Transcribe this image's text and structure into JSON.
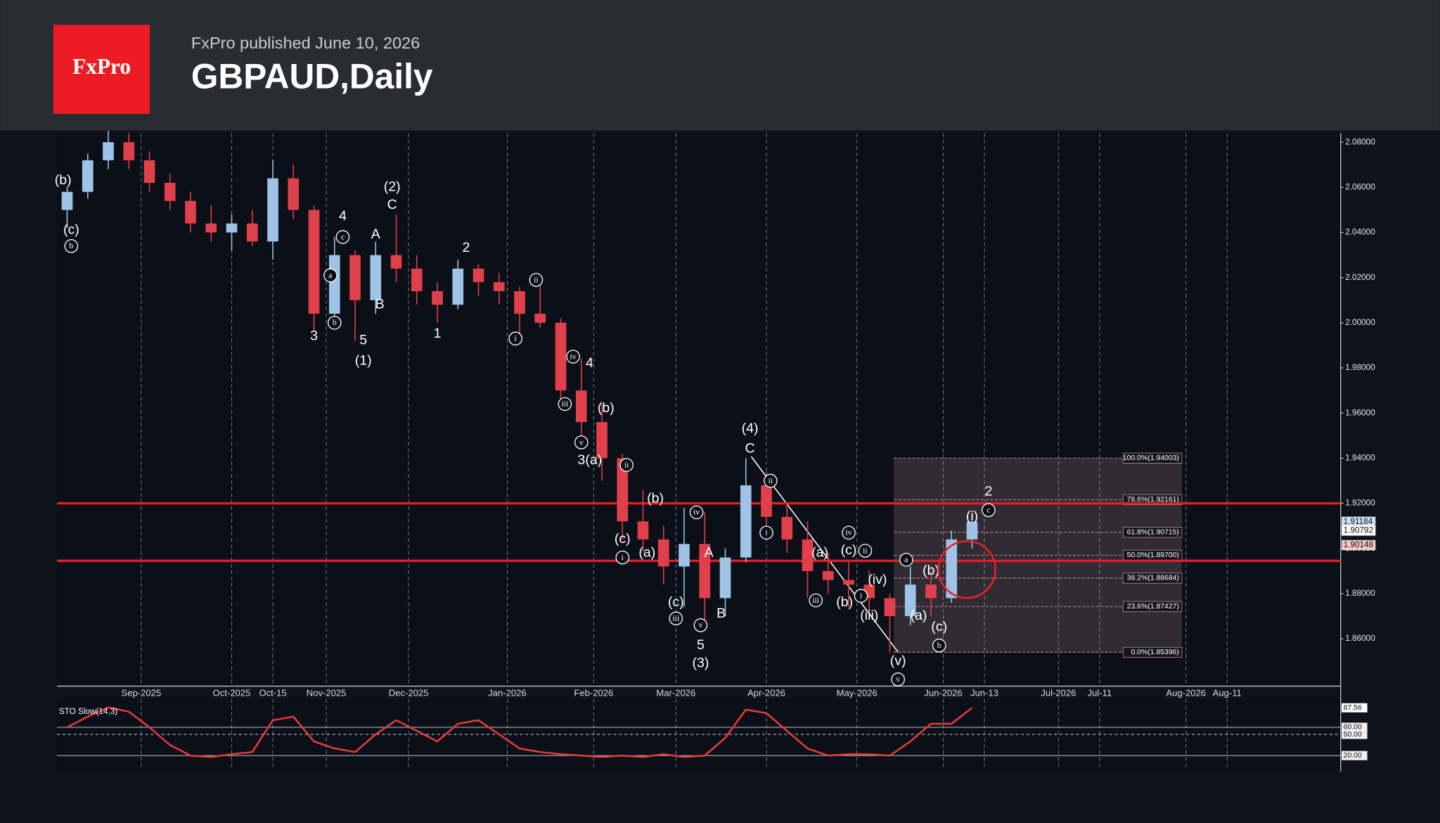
{
  "header": {
    "logo": "FxPro",
    "published": "FxPro published June 10, 2026",
    "title": "GBPAUD,Daily"
  },
  "chart_data": {
    "type": "candlestick",
    "x": [
      "2025-08-04",
      "2025-08-11",
      "2025-08-18",
      "2025-08-25",
      "2025-09-01",
      "2025-09-08",
      "2025-09-15",
      "2025-09-22",
      "2025-09-29",
      "2025-10-06",
      "2025-10-13",
      "2025-10-20",
      "2025-10-27",
      "2025-11-03",
      "2025-11-10",
      "2025-11-17",
      "2025-11-24",
      "2025-12-01",
      "2025-12-08",
      "2025-12-15",
      "2025-12-22",
      "2025-12-29",
      "2026-01-05",
      "2026-01-12",
      "2026-01-19",
      "2026-01-26",
      "2026-02-02",
      "2026-02-09",
      "2026-02-16",
      "2026-02-23",
      "2026-03-02",
      "2026-03-09",
      "2026-03-16",
      "2026-03-23",
      "2026-03-30",
      "2026-04-06",
      "2026-04-13",
      "2026-04-20",
      "2026-04-27",
      "2026-05-04",
      "2026-05-11",
      "2026-05-18",
      "2026-05-25",
      "2026-06-01",
      "2026-06-08"
    ],
    "open": [
      2.05,
      2.058,
      2.072,
      2.08,
      2.072,
      2.062,
      2.054,
      2.044,
      2.04,
      2.044,
      2.036,
      2.064,
      2.05,
      2.004,
      2.03,
      2.01,
      2.03,
      2.024,
      2.014,
      2.008,
      2.024,
      2.018,
      2.014,
      2.004,
      2.0,
      1.97,
      1.956,
      1.94,
      1.912,
      1.904,
      1.892,
      1.902,
      1.878,
      1.896,
      1.928,
      1.914,
      1.904,
      1.89,
      1.886,
      1.884,
      1.878,
      1.87,
      1.884,
      1.878,
      1.904
    ],
    "high": [
      2.06,
      2.075,
      2.085,
      2.084,
      2.076,
      2.066,
      2.058,
      2.052,
      2.048,
      2.05,
      2.072,
      2.07,
      2.052,
      2.038,
      2.032,
      2.036,
      2.048,
      2.03,
      2.018,
      2.028,
      2.026,
      2.022,
      2.016,
      2.018,
      2.002,
      1.984,
      1.964,
      1.942,
      1.926,
      1.91,
      1.918,
      1.916,
      1.9,
      1.94,
      1.934,
      1.92,
      1.912,
      1.898,
      1.894,
      1.89,
      1.88,
      1.892,
      1.89,
      1.908,
      1.912
    ],
    "low": [
      2.042,
      2.055,
      2.068,
      2.068,
      2.058,
      2.05,
      2.04,
      2.036,
      2.032,
      2.034,
      2.028,
      2.046,
      1.996,
      1.998,
      1.992,
      2.004,
      2.018,
      2.008,
      2.0,
      2.006,
      2.012,
      2.008,
      1.995,
      1.998,
      1.962,
      1.946,
      1.93,
      1.904,
      1.898,
      1.884,
      1.874,
      1.866,
      1.87,
      1.894,
      1.906,
      1.898,
      1.878,
      1.88,
      1.874,
      1.872,
      1.854,
      1.866,
      1.87,
      1.876,
      1.9
    ],
    "close": [
      2.058,
      2.072,
      2.08,
      2.072,
      2.062,
      2.054,
      2.044,
      2.04,
      2.044,
      2.036,
      2.064,
      2.05,
      2.004,
      2.03,
      2.01,
      2.03,
      2.024,
      2.014,
      2.008,
      2.024,
      2.018,
      2.014,
      2.004,
      2.0,
      1.97,
      1.956,
      1.94,
      1.912,
      1.904,
      1.892,
      1.902,
      1.878,
      1.896,
      1.928,
      1.914,
      1.904,
      1.89,
      1.886,
      1.884,
      1.878,
      1.87,
      1.884,
      1.878,
      1.904,
      1.91184
    ],
    "up_color": "#9ec3e6",
    "down_color": "#e0404a",
    "ylim": [
      1.839,
      2.084
    ],
    "yticks": [
      {
        "value": 2.08,
        "label": "2.08000"
      },
      {
        "value": 2.06,
        "label": "2.06000"
      },
      {
        "value": 2.04,
        "label": "2.04000"
      },
      {
        "value": 2.02,
        "label": "2.02000"
      },
      {
        "value": 2.0,
        "label": "2.00000"
      },
      {
        "value": 1.98,
        "label": "1.98000"
      },
      {
        "value": 1.96,
        "label": "1.96000"
      },
      {
        "value": 1.94,
        "label": "1.94000"
      },
      {
        "value": 1.92,
        "label": "1.92000"
      },
      {
        "value": 1.9,
        "label": "1.90000"
      },
      {
        "value": 1.88,
        "label": "1.88000"
      },
      {
        "value": 1.86,
        "label": "1.86000"
      }
    ],
    "xticks": [
      {
        "value": "2025-09-01",
        "label": "Sep-2025"
      },
      {
        "value": "2025-10-01",
        "label": "Oct-2025"
      },
      {
        "value": "2025-10-15",
        "label": "Oct-15"
      },
      {
        "value": "2025-11-03",
        "label": "Nov-2025"
      },
      {
        "value": "2025-12-01",
        "label": "Dec-2025"
      },
      {
        "value": "2026-01-02",
        "label": "Jan-2026"
      },
      {
        "value": "2026-02-02",
        "label": "Feb-2026"
      },
      {
        "value": "2026-03-02",
        "label": "Mar-2026"
      },
      {
        "value": "2026-04-01",
        "label": "Apr-2026"
      },
      {
        "value": "2026-05-01",
        "label": "May-2026"
      },
      {
        "value": "2026-06-01",
        "label": "Jun-2026"
      },
      {
        "value": "2026-06-13",
        "label": "Jun-13"
      },
      {
        "value": "2026-07-01",
        "label": "Jul-2026"
      },
      {
        "value": "2026-07-11",
        "label": "Jul-11"
      },
      {
        "value": "2026-08-01",
        "label": "Aug-2026"
      },
      {
        "value": "2026-08-11",
        "label": "Aug-11"
      }
    ],
    "grid": true,
    "hlines": [
      {
        "value": 1.92,
        "color": "#e31e24"
      },
      {
        "value": 1.8945,
        "color": "#e31e24"
      }
    ],
    "fib_range": {
      "from": "2026-05-14",
      "to": "2026-07-31"
    },
    "fib_levels": [
      {
        "value": 1.94003,
        "label": "100.0%(1.94003)"
      },
      {
        "value": 1.92161,
        "label": "78.6%(1.92161)"
      },
      {
        "value": 1.90715,
        "label": "61.8%(1.90715)"
      },
      {
        "value": 1.897,
        "label": "50.0%(1.89700)"
      },
      {
        "value": 1.88684,
        "label": "38.2%(1.88684)"
      },
      {
        "value": 1.87427,
        "label": "23.6%(1.87427)"
      },
      {
        "value": 1.85396,
        "label": "0.0%(1.85396)"
      }
    ],
    "price_labels": [
      {
        "value": 1.90792,
        "color": "#ffffff"
      },
      {
        "value": 1.90148,
        "color": "#f6c9c9"
      }
    ],
    "annotations": [
      {
        "text": "(b)",
        "date": "2025-08-05",
        "price": 2.063,
        "circled": false
      },
      {
        "text": "(c)",
        "date": "2025-08-07",
        "price": 2.041,
        "circled": false
      },
      {
        "text": "b",
        "date": "2025-08-07",
        "price": 2.034,
        "circled": true
      },
      {
        "text": "3",
        "date": "2025-10-29",
        "price": 1.994,
        "circled": false
      },
      {
        "text": "a",
        "date": "2025-11-04",
        "price": 2.021,
        "circled": true
      },
      {
        "text": "b",
        "date": "2025-11-05",
        "price": 2.0,
        "circled": true
      },
      {
        "text": "4",
        "date": "2025-11-07",
        "price": 2.047,
        "circled": false
      },
      {
        "text": "c",
        "date": "2025-11-07",
        "price": 2.038,
        "circled": true
      },
      {
        "text": "5",
        "date": "2025-11-14",
        "price": 1.992,
        "circled": false
      },
      {
        "text": "(1)",
        "date": "2025-11-14",
        "price": 1.983,
        "circled": false
      },
      {
        "text": "A",
        "date": "2025-11-19",
        "price": 2.039,
        "circled": false
      },
      {
        "text": "B",
        "date": "2025-11-20",
        "price": 2.008,
        "circled": false
      },
      {
        "text": "(2)",
        "date": "2025-11-25",
        "price": 2.06,
        "circled": false
      },
      {
        "text": "C",
        "date": "2025-11-25",
        "price": 2.052,
        "circled": false
      },
      {
        "text": "1",
        "date": "2025-12-10",
        "price": 1.995,
        "circled": false
      },
      {
        "text": "2",
        "date": "2025-12-19",
        "price": 2.033,
        "circled": false
      },
      {
        "text": "i",
        "date": "2026-01-06",
        "price": 1.993,
        "circled": true
      },
      {
        "text": "ii",
        "date": "2026-01-13",
        "price": 2.019,
        "circled": true
      },
      {
        "text": "iii",
        "date": "2026-01-22",
        "price": 1.964,
        "circled": true
      },
      {
        "text": "iv",
        "date": "2026-01-26",
        "price": 1.985,
        "circled": true
      },
      {
        "text": "v",
        "date": "2026-01-28",
        "price": 1.947,
        "circled": true
      },
      {
        "text": "3",
        "date": "2026-01-28",
        "price": 1.939,
        "circled": false
      },
      {
        "text": "4",
        "date": "2026-01-30",
        "price": 1.982,
        "circled": false
      },
      {
        "text": "(a)",
        "date": "2026-02-02",
        "price": 1.939,
        "circled": false
      },
      {
        "text": "(b)",
        "date": "2026-02-05",
        "price": 1.962,
        "circled": false
      },
      {
        "text": "(c)",
        "date": "2026-02-11",
        "price": 1.904,
        "circled": false
      },
      {
        "text": "i",
        "date": "2026-02-11",
        "price": 1.896,
        "circled": true
      },
      {
        "text": "ii",
        "date": "2026-02-12",
        "price": 1.937,
        "circled": true
      },
      {
        "text": "(a)",
        "date": "2026-02-19",
        "price": 1.898,
        "circled": false
      },
      {
        "text": "(b)",
        "date": "2026-02-23",
        "price": 1.922,
        "circled": false
      },
      {
        "text": "(c)",
        "date": "2026-03-02",
        "price": 1.876,
        "circled": false
      },
      {
        "text": "iii",
        "date": "2026-03-02",
        "price": 1.869,
        "circled": true
      },
      {
        "text": "iv",
        "date": "2026-03-09",
        "price": 1.916,
        "circled": true
      },
      {
        "text": "v",
        "date": "2026-03-10",
        "price": 1.866,
        "circled": true
      },
      {
        "text": "5",
        "date": "2026-03-10",
        "price": 1.857,
        "circled": false
      },
      {
        "text": "(3)",
        "date": "2026-03-10",
        "price": 1.849,
        "circled": false
      },
      {
        "text": "A",
        "date": "2026-03-12",
        "price": 1.898,
        "circled": false
      },
      {
        "text": "B",
        "date": "2026-03-17",
        "price": 1.871,
        "circled": false
      },
      {
        "text": "(4)",
        "date": "2026-03-26",
        "price": 1.953,
        "circled": false
      },
      {
        "text": "C",
        "date": "2026-03-26",
        "price": 1.944,
        "circled": false
      },
      {
        "text": "i",
        "date": "2026-04-01",
        "price": 1.907,
        "circled": true
      },
      {
        "text": "ii",
        "date": "2026-04-02",
        "price": 1.93,
        "circled": true
      },
      {
        "text": "iii",
        "date": "2026-04-17",
        "price": 1.877,
        "circled": true
      },
      {
        "text": "(a)",
        "date": "2026-04-20",
        "price": 1.898,
        "circled": false
      },
      {
        "text": "(b)",
        "date": "2026-04-28",
        "price": 1.876,
        "circled": false
      },
      {
        "text": "iv",
        "date": "2026-04-29",
        "price": 1.907,
        "circled": true
      },
      {
        "text": "(c)",
        "date": "2026-04-29",
        "price": 1.899,
        "circled": false
      },
      {
        "text": "i",
        "date": "2026-05-04",
        "price": 1.879,
        "circled": true
      },
      {
        "text": "ii",
        "date": "2026-05-05",
        "price": 1.899,
        "circled": true
      },
      {
        "text": "(iii)",
        "date": "2026-05-06",
        "price": 1.87,
        "circled": false
      },
      {
        "text": "(iv)",
        "date": "2026-05-08",
        "price": 1.886,
        "circled": false
      },
      {
        "text": "(v)",
        "date": "2026-05-15",
        "price": 1.85,
        "circled": false
      },
      {
        "text": "v",
        "date": "2026-05-15",
        "price": 1.842,
        "circled": true
      },
      {
        "text": "a",
        "date": "2026-05-19",
        "price": 1.895,
        "circled": true
      },
      {
        "text": "(a)",
        "date": "2026-05-22",
        "price": 1.87,
        "circled": false
      },
      {
        "text": "(b)",
        "date": "2026-05-27",
        "price": 1.89,
        "circled": false
      },
      {
        "text": "(c)",
        "date": "2026-05-29",
        "price": 1.865,
        "circled": false
      },
      {
        "text": "b",
        "date": "2026-05-29",
        "price": 1.857,
        "circled": true
      },
      {
        "text": "(i)",
        "date": "2026-06-10",
        "price": 1.914,
        "circled": false
      },
      {
        "text": "2",
        "date": "2026-06-14",
        "price": 1.925,
        "circled": false
      },
      {
        "text": "c",
        "date": "2026-06-14",
        "price": 1.917,
        "circled": true
      }
    ],
    "indicator": {
      "title": "STO Slow(14,3)",
      "color": "#e03a3a",
      "values": [
        60,
        75,
        88,
        82,
        60,
        35,
        20,
        18,
        22,
        25,
        70,
        75,
        40,
        30,
        25,
        50,
        70,
        55,
        40,
        65,
        70,
        50,
        30,
        25,
        22,
        20,
        18,
        20,
        18,
        22,
        18,
        20,
        45,
        85,
        80,
        55,
        30,
        20,
        22,
        22,
        20,
        40,
        65,
        65,
        87.56
      ],
      "ylim": [
        0,
        100
      ],
      "yticks": [
        {
          "value": 60,
          "label": "60.00"
        },
        {
          "value": 50,
          "label": "50.00"
        },
        {
          "value": 20,
          "label": "20.00"
        }
      ]
    }
  }
}
